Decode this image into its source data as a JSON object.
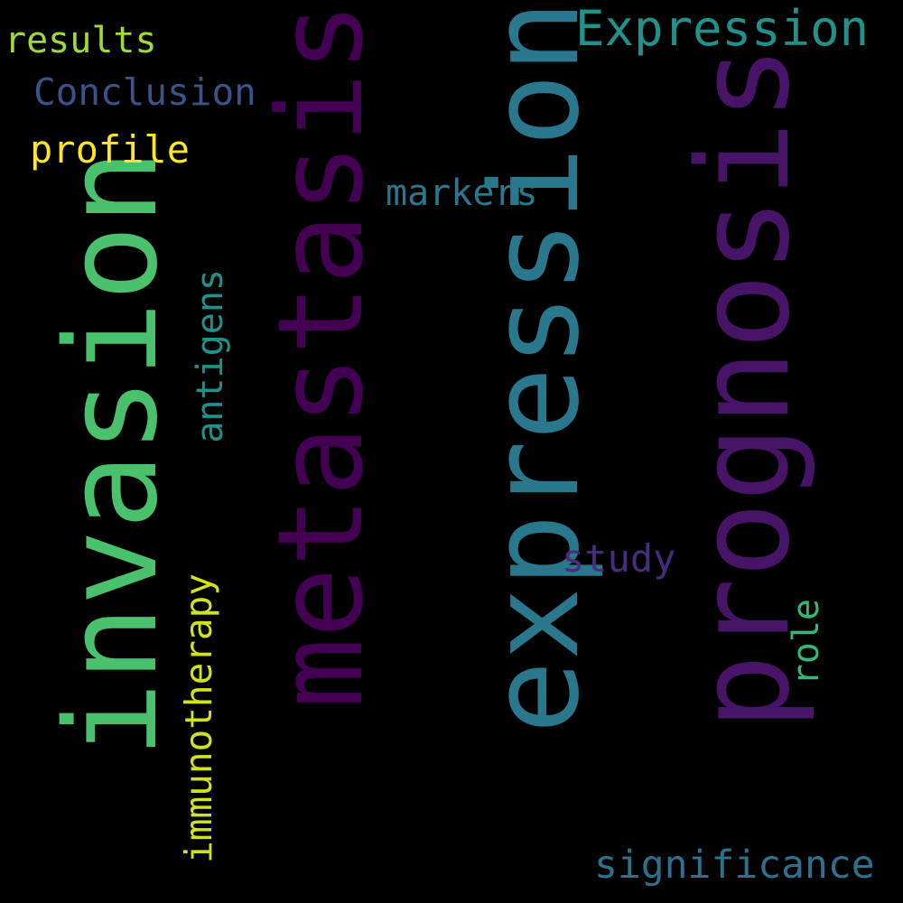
{
  "words": {
    "metastasis": {
      "text": "metastasis",
      "color": "#440154"
    },
    "expression": {
      "text": "expression",
      "color": "#2a788e"
    },
    "prognosis": {
      "text": "prognosis",
      "color": "#481467"
    },
    "invasion": {
      "text": "invasion",
      "color": "#4ac16d"
    },
    "immunotherapy": {
      "text": "immunotherapy",
      "color": "#d2e21b"
    },
    "antigens": {
      "text": "antigens",
      "color": "#21918c"
    },
    "role": {
      "text": "role",
      "color": "#35b779"
    },
    "Expression": {
      "text": "Expression",
      "color": "#21918c"
    },
    "results": {
      "text": "results",
      "color": "#a0da39"
    },
    "Conclusion": {
      "text": "Conclusion",
      "color": "#3b528b"
    },
    "profile": {
      "text": "profile",
      "color": "#fde725"
    },
    "markers": {
      "text": "markers",
      "color": "#2a788e"
    },
    "study": {
      "text": "study",
      "color": "#472d7b"
    },
    "significance": {
      "text": "significance",
      "color": "#2c728e"
    }
  }
}
